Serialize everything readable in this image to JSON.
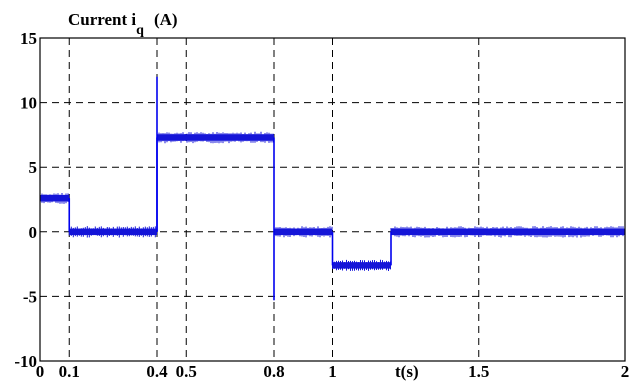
{
  "chart_data": {
    "type": "line",
    "title": "Current i",
    "title_subscript": "q",
    "title_unit": "(A)",
    "xlabel": "t(s)",
    "ylabel": "",
    "xlim": [
      0,
      2
    ],
    "ylim": [
      -10,
      15
    ],
    "x_ticks": [
      0,
      0.1,
      0.4,
      0.5,
      0.8,
      1,
      1.5,
      2
    ],
    "x_tick_labels": [
      "0",
      "0.1",
      "0.4",
      "0.5",
      "0.8",
      "1",
      "1.5",
      "2"
    ],
    "y_ticks": [
      -10,
      -5,
      0,
      5,
      10,
      15
    ],
    "y_tick_labels": [
      "-10",
      "-5",
      "0",
      "5",
      "10",
      "15"
    ],
    "grid": true,
    "legend": "none",
    "series_color": "#0000ee",
    "series": [
      {
        "noise_band": 0.5,
        "segments": [
          {
            "x0": 0.0,
            "x1": 0.1,
            "y": 2.6
          },
          {
            "x0": 0.1,
            "x1": 0.4,
            "y": 0.0
          },
          {
            "x0": 0.4,
            "x1": 0.8,
            "y": 7.3
          },
          {
            "x0": 0.8,
            "x1": 1.0,
            "y": 0.0
          },
          {
            "x0": 1.0,
            "x1": 1.2,
            "y": -2.6
          },
          {
            "x0": 1.2,
            "x1": 2.0,
            "y": 0.0
          }
        ],
        "spikes": [
          {
            "x": 0.4,
            "y": 12.0
          },
          {
            "x": 0.8,
            "y": -5.3
          }
        ]
      }
    ]
  }
}
